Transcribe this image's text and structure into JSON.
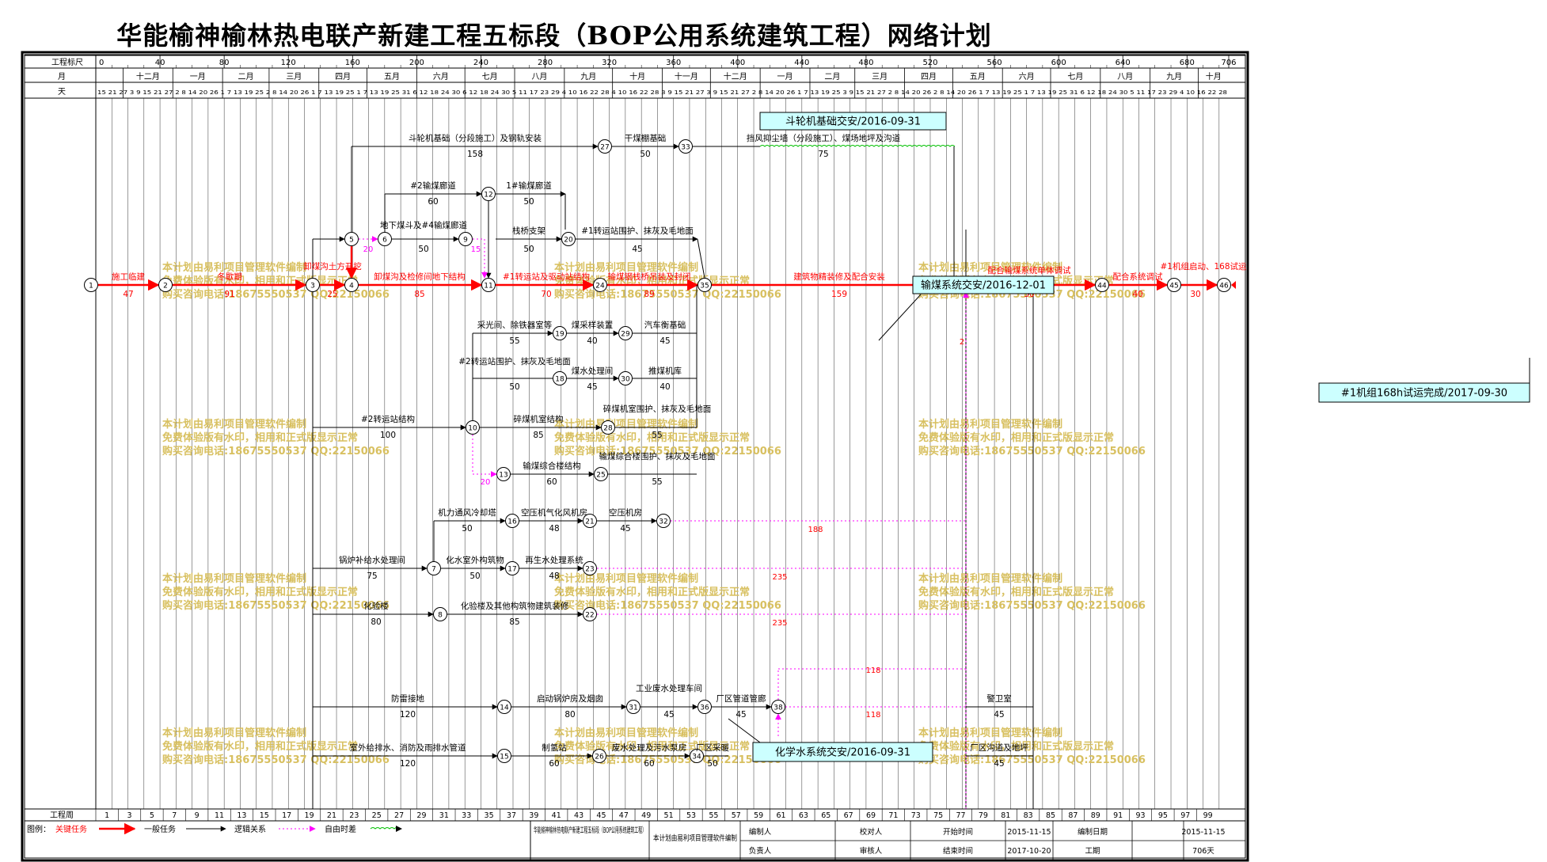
{
  "title": "华能榆神榆林热电联产新建工程五标段（BOP公用系统建筑工程）网络计划",
  "header": {
    "scale_label": "工程标尺",
    "scale_ticks": [
      "0",
      "40",
      "80",
      "120",
      "160",
      "200",
      "240",
      "280",
      "320",
      "360",
      "400",
      "440",
      "480",
      "520",
      "560",
      "600",
      "640",
      "680",
      "706"
    ],
    "month_label": "月",
    "months": [
      "十二月",
      "一月",
      "二月",
      "三月",
      "四月",
      "五月",
      "六月",
      "七月",
      "八月",
      "九月",
      "十月",
      "十一月",
      "十二月",
      "一月",
      "二月",
      "三月",
      "四月",
      "五月",
      "六月",
      "七月",
      "八月",
      "九月",
      "十月"
    ],
    "day_label": "天",
    "days": "15 21 27 3 9 15 21 27 2 8 14 20 26 1 7 13 19 25 2 8 14 20 26 1 7 13 19 25 1 7 13 19 25 31 6 12 18 24 30 6 12 18 24 30 5 11 17 23 29 4 10 16 22 28 4 10 16 22 28 3 9 15 21 27 3 9 15 21 27 2 8 14 20 26 1 7 13 19 25 3 9 15 21 27 2 8 14 20 26 2 8 14 20 26 1 7 13 19 25 1 7 13 19 25 31 6 12 18 24 30 5 11 17 23 29 4 10 16 22 28"
  },
  "callouts": {
    "c1": "斗轮机基础交安/2016-09-31",
    "c2": "输煤系统交安/2016-12-01",
    "c3": "#1机组168h试运完成/2017-09-30",
    "c4": "化学水系统交安/2016-09-31"
  },
  "watermark": {
    "l1": "本计划由易利项目管理软件编制",
    "l2": "免费体验版有水印，相用和正式版显示正常",
    "l3": "购买咨询电话:18675550537 QQ:22150066"
  },
  "activities": [
    {
      "name": "施工临建",
      "dur": "47"
    },
    {
      "name": "冬歇期",
      "dur": "91"
    },
    {
      "name": "卸煤沟土方开挖",
      "dur": "25"
    },
    {
      "name": "卸煤沟及检修间地下结构",
      "dur": "85"
    },
    {
      "name": "#1转运站及驱动站结构",
      "dur": "70"
    },
    {
      "name": "输煤钢栈桥吊装及封闭",
      "dur": "89"
    },
    {
      "name": "建筑物精装修及配合安装",
      "dur": "159"
    },
    {
      "name": "配合输煤系统单体调试",
      "dur": "30"
    },
    {
      "name": "配合系统调试",
      "dur": "40"
    },
    {
      "name": "#1机组启动、168试运",
      "dur": "30"
    },
    {
      "name": "斗轮机基础（分段施工）及钢轨安装",
      "dur": "158"
    },
    {
      "name": "干煤棚基础",
      "dur": "50"
    },
    {
      "name": "挡风抑尘墙（分段施工）、煤场地坪及沟道",
      "dur": "75"
    },
    {
      "name": "#2输煤廊道",
      "dur": "60"
    },
    {
      "name": "1#输煤廊道",
      "dur": "50"
    },
    {
      "name": "地下煤斗及#4输煤廊道",
      "dur": "50"
    },
    {
      "name": "栈桥支架",
      "dur": "50"
    },
    {
      "name": "#1转运站围护、抹灰及毛地面",
      "dur": "45"
    },
    {
      "name": "采光间、除铁器室等",
      "dur": "55"
    },
    {
      "name": "煤采样装置",
      "dur": "40"
    },
    {
      "name": "汽车衡基础",
      "dur": "45"
    },
    {
      "name": "#2转运站围护、抹灰及毛地面",
      "dur": "50"
    },
    {
      "name": "煤水处理间",
      "dur": "45"
    },
    {
      "name": "推煤机库",
      "dur": "40"
    },
    {
      "name": "#2转运站结构",
      "dur": "100"
    },
    {
      "name": "碎煤机室结构",
      "dur": "85"
    },
    {
      "name": "碎煤机室围护、抹灰及毛地面",
      "dur": "55"
    },
    {
      "name": "输煤综合楼结构",
      "dur": "60"
    },
    {
      "name": "输煤综合楼围护、抹灰及毛地面",
      "dur": "55"
    },
    {
      "name": "机力通风冷却塔",
      "dur": "50"
    },
    {
      "name": "空压机气化风机房",
      "dur": "48"
    },
    {
      "name": "空压机房",
      "dur": "45"
    },
    {
      "name": "锅炉补给水处理间",
      "dur": "75"
    },
    {
      "name": "化水室外构筑物",
      "dur": "50"
    },
    {
      "name": "再生水处理系统",
      "dur": "48"
    },
    {
      "name": "化验楼",
      "dur": "80"
    },
    {
      "name": "化验楼及其他构筑物建筑装修",
      "dur": "85"
    },
    {
      "name": "防雷接地",
      "dur": "120"
    },
    {
      "name": "启动锅炉房及烟囱",
      "dur": "80"
    },
    {
      "name": "工业废水处理车间",
      "dur": "45"
    },
    {
      "name": "厂区管道管廊",
      "dur": "45"
    },
    {
      "name": "室外给排水、消防及雨排水管道",
      "dur": "120"
    },
    {
      "name": "制氢站",
      "dur": "60"
    },
    {
      "name": "废水处理及污水泵房",
      "dur": "60"
    },
    {
      "name": "厂区采暖",
      "dur": "50"
    },
    {
      "name": "警卫室",
      "dur": "45"
    },
    {
      "name": "厂区沟道及地坪",
      "dur": "45"
    }
  ],
  "float_labels": [
    "20",
    "15",
    "20",
    "188",
    "235",
    "235",
    "118",
    "118",
    "2"
  ],
  "footer": {
    "week_label": "工程周",
    "weeks": [
      "1",
      "3",
      "5",
      "7",
      "9",
      "11",
      "13",
      "15",
      "17",
      "19",
      "21",
      "23",
      "25",
      "27",
      "29",
      "31",
      "33",
      "35",
      "37",
      "39",
      "41",
      "43",
      "45",
      "47",
      "49",
      "51",
      "53",
      "55",
      "57",
      "59",
      "61",
      "63",
      "65",
      "67",
      "69",
      "71",
      "73",
      "75",
      "77",
      "79",
      "81",
      "83",
      "85",
      "87",
      "89",
      "91",
      "93",
      "95",
      "97",
      "99"
    ]
  },
  "legend": {
    "label": "图例：",
    "critical": "关键任务",
    "normal": "一般任务",
    "logic": "逻辑关系",
    "free_float": "自由时差"
  },
  "info": {
    "project_name": "华能榆神榆林热电联产新建工程五标段（BOP公用系统建筑工程）",
    "software": "本计划由易利项目管理软件编制",
    "editor_label": "编制人",
    "checker_label": "校对人",
    "owner_label": "负责人",
    "reviewer_label": "审核人",
    "start_label": "开始时间",
    "start_value": "2015-11-15",
    "compile_label": "编制日期",
    "compile_value": "2015-11-15",
    "end_label": "结束时间",
    "end_value": "2017-10-20",
    "duration_label": "工期",
    "duration_value": "706天"
  },
  "colors": {
    "critical": "#ff0000",
    "normal": "#000000",
    "float": "#ff00ff",
    "wave": "#00c000",
    "callout_bg": "#ccffff",
    "watermark": "#d8c060"
  }
}
